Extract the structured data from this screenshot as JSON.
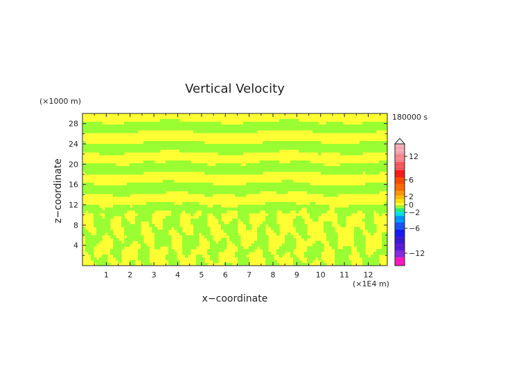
{
  "chart_data": {
    "type": "heatmap",
    "title": "Vertical Velocity",
    "xlabel": "x−coordinate",
    "ylabel": "z−coordinate",
    "x_unit": "(×1E4 m)",
    "y_unit": "(×1000 m)",
    "time_label": "180000 s",
    "xlim": [
      0,
      12.8
    ],
    "ylim": [
      0,
      30
    ],
    "x_ticks": [
      "1",
      "2",
      "3",
      "4",
      "5",
      "6",
      "7",
      "8",
      "9",
      "10",
      "11",
      "12"
    ],
    "y_ticks": [
      "4",
      "8",
      "12",
      "16",
      "20",
      "24",
      "28"
    ],
    "colorbar": {
      "tick_labels": [
        "12",
        "6",
        "2",
        "0",
        "−2",
        "−6",
        "−12"
      ],
      "colors": {
        "pink_top": "#f7aeb8",
        "red": "#ff1a1a",
        "orange": "#ff9a00",
        "yellow": "#ffff33",
        "green": "#99ff33",
        "cyan": "#00e6e6",
        "blue": "#1a55ff",
        "purple": "#8a2be2",
        "magenta": "#ff1abf"
      }
    },
    "field_colors": {
      "positive": "#ffff33",
      "negative": "#99ff33"
    }
  }
}
